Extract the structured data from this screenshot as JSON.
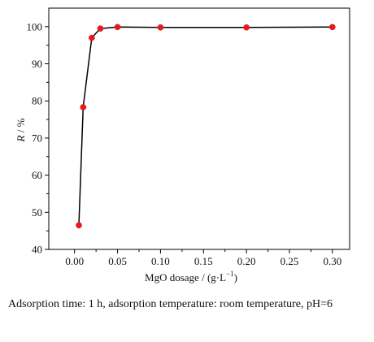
{
  "chart_data": {
    "type": "line",
    "x": [
      0.005,
      0.01,
      0.02,
      0.03,
      0.05,
      0.1,
      0.2,
      0.3
    ],
    "series": [
      {
        "values": [
          46.5,
          78.3,
          97.0,
          99.5,
          99.9,
          99.8,
          99.8,
          99.9
        ],
        "color": "#e41a1c"
      }
    ],
    "xlabel": {
      "prefix": "MgO dosage / (g·L",
      "sup": "−1",
      "suffix": ")"
    },
    "ylabel": {
      "italic": "R",
      "rest": " / %"
    },
    "xlim": [
      -0.03,
      0.32
    ],
    "ylim": [
      40,
      105
    ],
    "x_ticks": [
      "0.00",
      "0.05",
      "0.10",
      "0.15",
      "0.20",
      "0.25",
      "0.30"
    ],
    "y_ticks": [
      "40",
      "50",
      "60",
      "70",
      "80",
      "90",
      "100"
    ],
    "line_color": "#000000",
    "marker_color": "#e41a1c",
    "grid": false
  },
  "caption": "Adsorption time: 1 h, adsorption temperature: room temperature, pH=6"
}
